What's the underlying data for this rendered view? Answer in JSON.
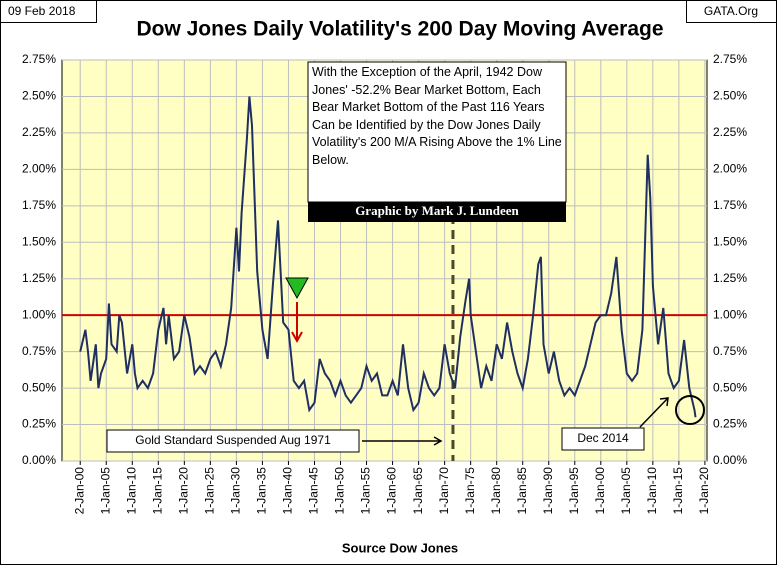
{
  "chart_data": {
    "type": "line",
    "date": "09 Feb 2018",
    "source_site": "GATA.Org",
    "title": "Dow Jones Daily Volatility's 200 Day Moving Average",
    "xlabel": "Source Dow Jones",
    "note": "With the Exception of the April, 1942 Dow Jones' -52.2% Bear Market Bottom, Each Bear Market Bottom of the Past 116 Years Can be Identified by the Dow Jones Daily Volatility's 200 M/A Rising Above the 1% Line Below.",
    "credit": "Graphic by Mark J. Lundeen",
    "annotations": [
      "Gold Standard Suspended Aug 1971",
      "Dec 2014"
    ],
    "xlim": [
      1896.5,
      2020.4
    ],
    "ylim": [
      0,
      2.75
    ],
    "ref_line": 1.0,
    "ref_color": "#d00000",
    "vline": 1971.6,
    "grid": true,
    "xticks": [
      {
        "value": 1900,
        "label": "2-Jan-00"
      },
      {
        "value": 1905,
        "label": "1-Jan-05"
      },
      {
        "value": 1910,
        "label": "1-Jan-10"
      },
      {
        "value": 1915,
        "label": "1-Jan-15"
      },
      {
        "value": 1920,
        "label": "1-Jan-20"
      },
      {
        "value": 1925,
        "label": "1-Jan-25"
      },
      {
        "value": 1930,
        "label": "1-Jan-30"
      },
      {
        "value": 1935,
        "label": "1-Jan-35"
      },
      {
        "value": 1940,
        "label": "1-Jan-40"
      },
      {
        "value": 1945,
        "label": "1-Jan-45"
      },
      {
        "value": 1950,
        "label": "1-Jan-50"
      },
      {
        "value": 1955,
        "label": "1-Jan-55"
      },
      {
        "value": 1960,
        "label": "1-Jan-60"
      },
      {
        "value": 1965,
        "label": "1-Jan-65"
      },
      {
        "value": 1970,
        "label": "1-Jan-70"
      },
      {
        "value": 1975,
        "label": "1-Jan-75"
      },
      {
        "value": 1980,
        "label": "1-Jan-80"
      },
      {
        "value": 1985,
        "label": "1-Jan-85"
      },
      {
        "value": 1990,
        "label": "1-Jan-90"
      },
      {
        "value": 1995,
        "label": "1-Jan-95"
      },
      {
        "value": 2000,
        "label": "1-Jan-00"
      },
      {
        "value": 2005,
        "label": "1-Jan-05"
      },
      {
        "value": 2010,
        "label": "1-Jan-10"
      },
      {
        "value": 2015,
        "label": "1-Jan-15"
      },
      {
        "value": 2020,
        "label": "1-Jan-20"
      }
    ],
    "yticks": [
      {
        "value": 0,
        "label": "0.00%"
      },
      {
        "value": 0.25,
        "label": "0.25%"
      },
      {
        "value": 0.5,
        "label": "0.50%"
      },
      {
        "value": 0.75,
        "label": "0.75%"
      },
      {
        "value": 1.0,
        "label": "1.00%"
      },
      {
        "value": 1.25,
        "label": "1.25%"
      },
      {
        "value": 1.5,
        "label": "1.50%"
      },
      {
        "value": 1.75,
        "label": "1.75%"
      },
      {
        "value": 2.0,
        "label": "2.00%"
      },
      {
        "value": 2.25,
        "label": "2.25%"
      },
      {
        "value": 2.5,
        "label": "2.50%"
      },
      {
        "value": 2.75,
        "label": "2.75%"
      }
    ],
    "x": [
      1900,
      1901,
      1901.5,
      1902,
      1903,
      1903.5,
      1904,
      1905,
      1905.5,
      1906,
      1907,
      1907.5,
      1908,
      1909,
      1910,
      1910.5,
      1911,
      1912,
      1913,
      1914,
      1915,
      1916,
      1916.5,
      1917,
      1918,
      1919,
      1920,
      1921,
      1922,
      1923,
      1924,
      1925,
      1926,
      1927,
      1928,
      1929,
      1930,
      1930.5,
      1931,
      1932,
      1932.5,
      1933,
      1934,
      1935,
      1936,
      1937,
      1938,
      1938.5,
      1939,
      1940,
      1941,
      1942,
      1943,
      1944,
      1945,
      1946,
      1947,
      1948,
      1949,
      1950,
      1951,
      1952,
      1953,
      1954,
      1955,
      1956,
      1957,
      1958,
      1959,
      1960,
      1961,
      1962,
      1963,
      1964,
      1965,
      1966,
      1967,
      1968,
      1969,
      1970,
      1971,
      1972,
      1973,
      1974,
      1974.7,
      1975,
      1976,
      1977,
      1978,
      1979,
      1980,
      1981,
      1982,
      1983,
      1984,
      1985,
      1986,
      1987,
      1988,
      1988.5,
      1989,
      1990,
      1991,
      1992,
      1993,
      1994,
      1995,
      1996,
      1997,
      1998,
      1999,
      2000,
      2001,
      2002,
      2003,
      2004,
      2005,
      2006,
      2007,
      2008,
      2009,
      2009.5,
      2010,
      2011,
      2012,
      2013,
      2014,
      2015,
      2016,
      2017,
      2018,
      2018.2
    ],
    "series": [
      {
        "name": "Dow Jones Daily Volatility 200 Day M/A",
        "color": "#1f2f5f",
        "values": [
          0.75,
          0.9,
          0.75,
          0.55,
          0.8,
          0.5,
          0.6,
          0.7,
          1.08,
          0.8,
          0.75,
          1.0,
          0.95,
          0.6,
          0.8,
          0.6,
          0.5,
          0.55,
          0.5,
          0.6,
          0.9,
          1.05,
          0.8,
          1.0,
          0.7,
          0.75,
          1.0,
          0.85,
          0.6,
          0.65,
          0.6,
          0.7,
          0.75,
          0.65,
          0.8,
          1.05,
          1.6,
          1.3,
          1.7,
          2.2,
          2.5,
          2.3,
          1.3,
          0.9,
          0.7,
          1.2,
          1.65,
          1.3,
          0.95,
          0.9,
          0.55,
          0.5,
          0.55,
          0.35,
          0.4,
          0.7,
          0.6,
          0.55,
          0.45,
          0.55,
          0.45,
          0.4,
          0.45,
          0.5,
          0.65,
          0.55,
          0.6,
          0.45,
          0.45,
          0.55,
          0.45,
          0.8,
          0.5,
          0.35,
          0.4,
          0.6,
          0.5,
          0.45,
          0.5,
          0.8,
          0.6,
          0.5,
          0.85,
          1.1,
          1.25,
          1.0,
          0.75,
          0.5,
          0.65,
          0.55,
          0.8,
          0.7,
          0.95,
          0.75,
          0.6,
          0.5,
          0.7,
          1.0,
          1.35,
          1.4,
          0.8,
          0.6,
          0.75,
          0.55,
          0.45,
          0.5,
          0.45,
          0.55,
          0.65,
          0.8,
          0.95,
          1.0,
          1.0,
          1.15,
          1.4,
          0.9,
          0.6,
          0.55,
          0.6,
          0.9,
          2.1,
          1.8,
          1.2,
          0.8,
          1.05,
          0.6,
          0.5,
          0.55,
          0.83,
          0.5,
          0.35,
          0.3
        ]
      }
    ]
  }
}
